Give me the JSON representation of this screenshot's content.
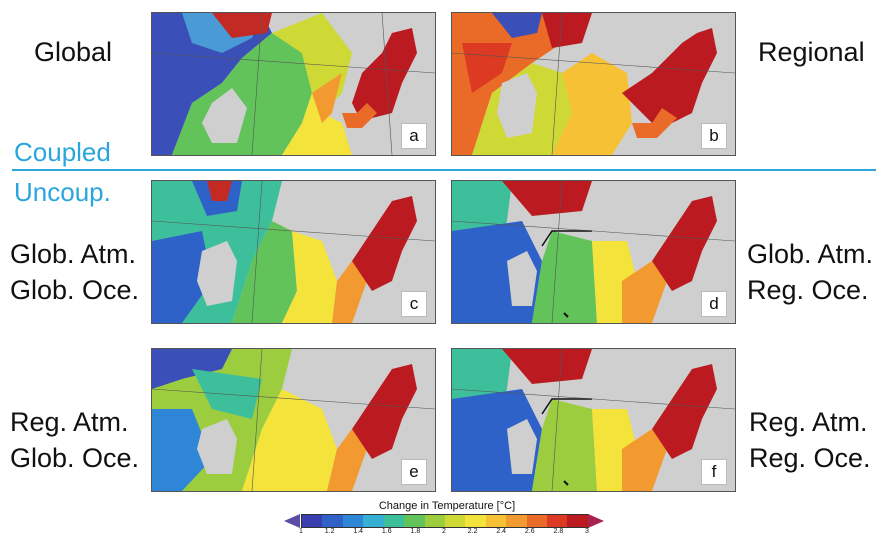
{
  "labels": {
    "global": "Global",
    "regional": "Regional",
    "coupled": "Coupled",
    "uncoupled": "Uncoup.",
    "row2_left_line1": "Glob. Atm.",
    "row2_left_line2": "Glob. Oce.",
    "row2_right_line1": "Glob. Atm.",
    "row2_right_line2": "Reg. Oce.",
    "row3_left_line1": "Reg. Atm.",
    "row3_left_line2": "Glob. Oce.",
    "row3_right_line1": "Reg. Atm.",
    "row3_right_line2": "Reg. Oce."
  },
  "panels": [
    {
      "letter": "a"
    },
    {
      "letter": "b"
    },
    {
      "letter": "c"
    },
    {
      "letter": "d"
    },
    {
      "letter": "e"
    },
    {
      "letter": "f"
    }
  ],
  "colorbar": {
    "title": "Change in Temperature [°C]",
    "ticks": [
      "1",
      "1.2",
      "1.4",
      "1.6",
      "1.8",
      "2",
      "2.2",
      "2.4",
      "2.6",
      "2.8",
      "3"
    ],
    "colors": [
      "#3a3fb0",
      "#2f62c8",
      "#2f86d6",
      "#35b0d2",
      "#3ebf9b",
      "#62c35a",
      "#9ccd3f",
      "#cfd935",
      "#f3e33b",
      "#f6c135",
      "#f29a2f",
      "#ea6b27",
      "#dc3a22",
      "#bb1b20"
    ],
    "min_color": "#5b4ca6",
    "max_color": "#a9224b"
  }
}
